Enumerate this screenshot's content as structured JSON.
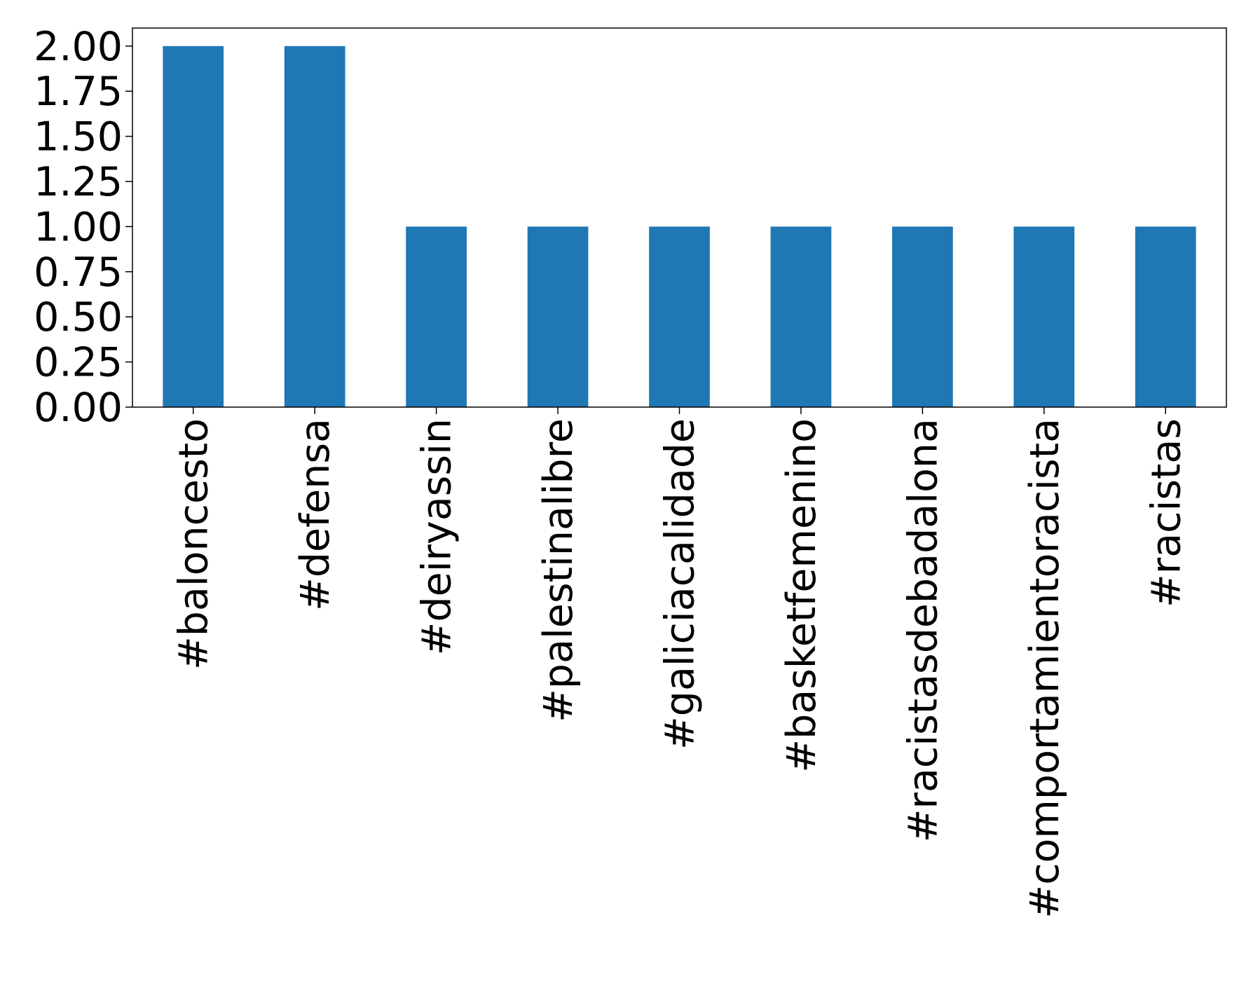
{
  "chart_data": {
    "type": "bar",
    "categories": [
      "#baloncesto",
      "#defensa",
      "#deiryassin",
      "#palestinalibre",
      "#galiciacalidade",
      "#basketfemenino",
      "#racistasdebadalona",
      "#comportamientoracista",
      "#racistas"
    ],
    "values": [
      2,
      2,
      1,
      1,
      1,
      1,
      1,
      1,
      1
    ],
    "color": "#1f77b4",
    "ylim": [
      0,
      2.1
    ],
    "yticks": [
      {
        "value": 0,
        "label": "0.00"
      },
      {
        "value": 0.25,
        "label": "0.25"
      },
      {
        "value": 0.5,
        "label": "0.50"
      },
      {
        "value": 0.75,
        "label": "0.75"
      },
      {
        "value": 1,
        "label": "1.00"
      },
      {
        "value": 1.25,
        "label": "1.25"
      },
      {
        "value": 1.5,
        "label": "1.50"
      },
      {
        "value": 1.75,
        "label": "1.75"
      },
      {
        "value": 2,
        "label": "2.00"
      }
    ],
    "grid": false
  }
}
